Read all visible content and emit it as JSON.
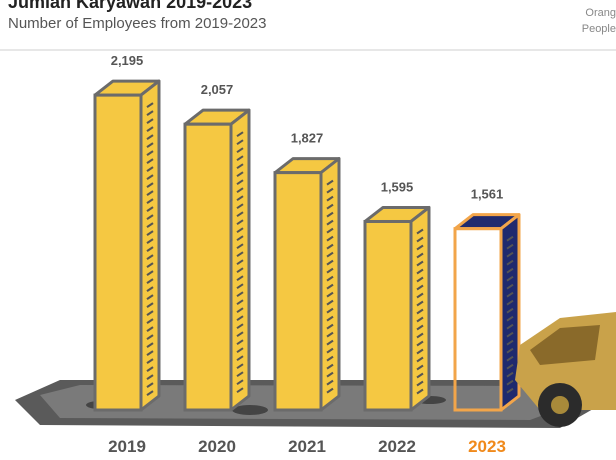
{
  "chart_data": {
    "type": "bar3d",
    "title": "Jumlah Karyawan 2019-2023",
    "subtitle": "Number of Employees from 2019-2023",
    "unit_label": "Orang",
    "unit_label_en": "People",
    "categories": [
      "2019",
      "2020",
      "2021",
      "2022",
      "2023"
    ],
    "values": [
      2195,
      2057,
      1827,
      1595,
      1561
    ],
    "value_labels": [
      "2,195",
      "2,057",
      "1,827",
      "1,595",
      "1,561"
    ],
    "colors": [
      "#f5c842",
      "#f5c842",
      "#f5c842",
      "#f5c842",
      "#1f2a6e"
    ],
    "outline_colors": [
      "#6b6b6b",
      "#6b6b6b",
      "#6b6b6b",
      "#6b6b6b",
      "#f2a54a"
    ],
    "category_label_colors": [
      "#555555",
      "#555555",
      "#555555",
      "#555555",
      "#f08a1c"
    ],
    "ylim": [
      700,
      2300
    ]
  }
}
